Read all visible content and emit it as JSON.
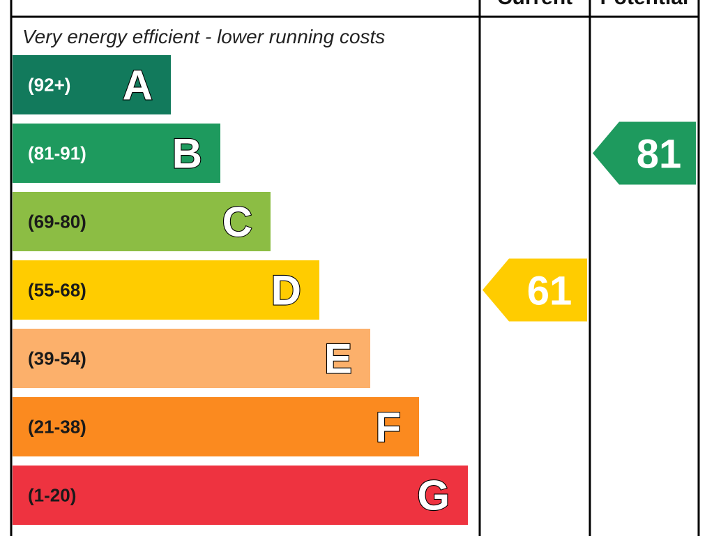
{
  "chart_data": {
    "type": "bar",
    "caption_top": "Very energy efficient - lower running costs",
    "column_headers": {
      "current": "Current",
      "potential": "Potential"
    },
    "bands": [
      {
        "letter": "A",
        "range": "(92+)",
        "color": "#127a5c",
        "range_text_color": "#ffffff"
      },
      {
        "letter": "B",
        "range": "(81-91)",
        "color": "#1e9a5e",
        "range_text_color": "#ffffff"
      },
      {
        "letter": "C",
        "range": "(69-80)",
        "color": "#8cbd44",
        "range_text_color": "#1a1a1a"
      },
      {
        "letter": "D",
        "range": "(55-68)",
        "color": "#ffcc00",
        "range_text_color": "#1a1a1a"
      },
      {
        "letter": "E",
        "range": "(39-54)",
        "color": "#fcb06b",
        "range_text_color": "#1a1a1a"
      },
      {
        "letter": "F",
        "range": "(21-38)",
        "color": "#fb8a1f",
        "range_text_color": "#1a1a1a"
      },
      {
        "letter": "G",
        "range": "(1-20)",
        "color": "#ee3340",
        "range_text_color": "#1a1a1a"
      }
    ],
    "current": {
      "value": 61,
      "label": "61",
      "band": "D",
      "color": "#ffcc00"
    },
    "potential": {
      "value": 81,
      "label": "81",
      "band": "B",
      "color": "#1e9a5e"
    }
  }
}
